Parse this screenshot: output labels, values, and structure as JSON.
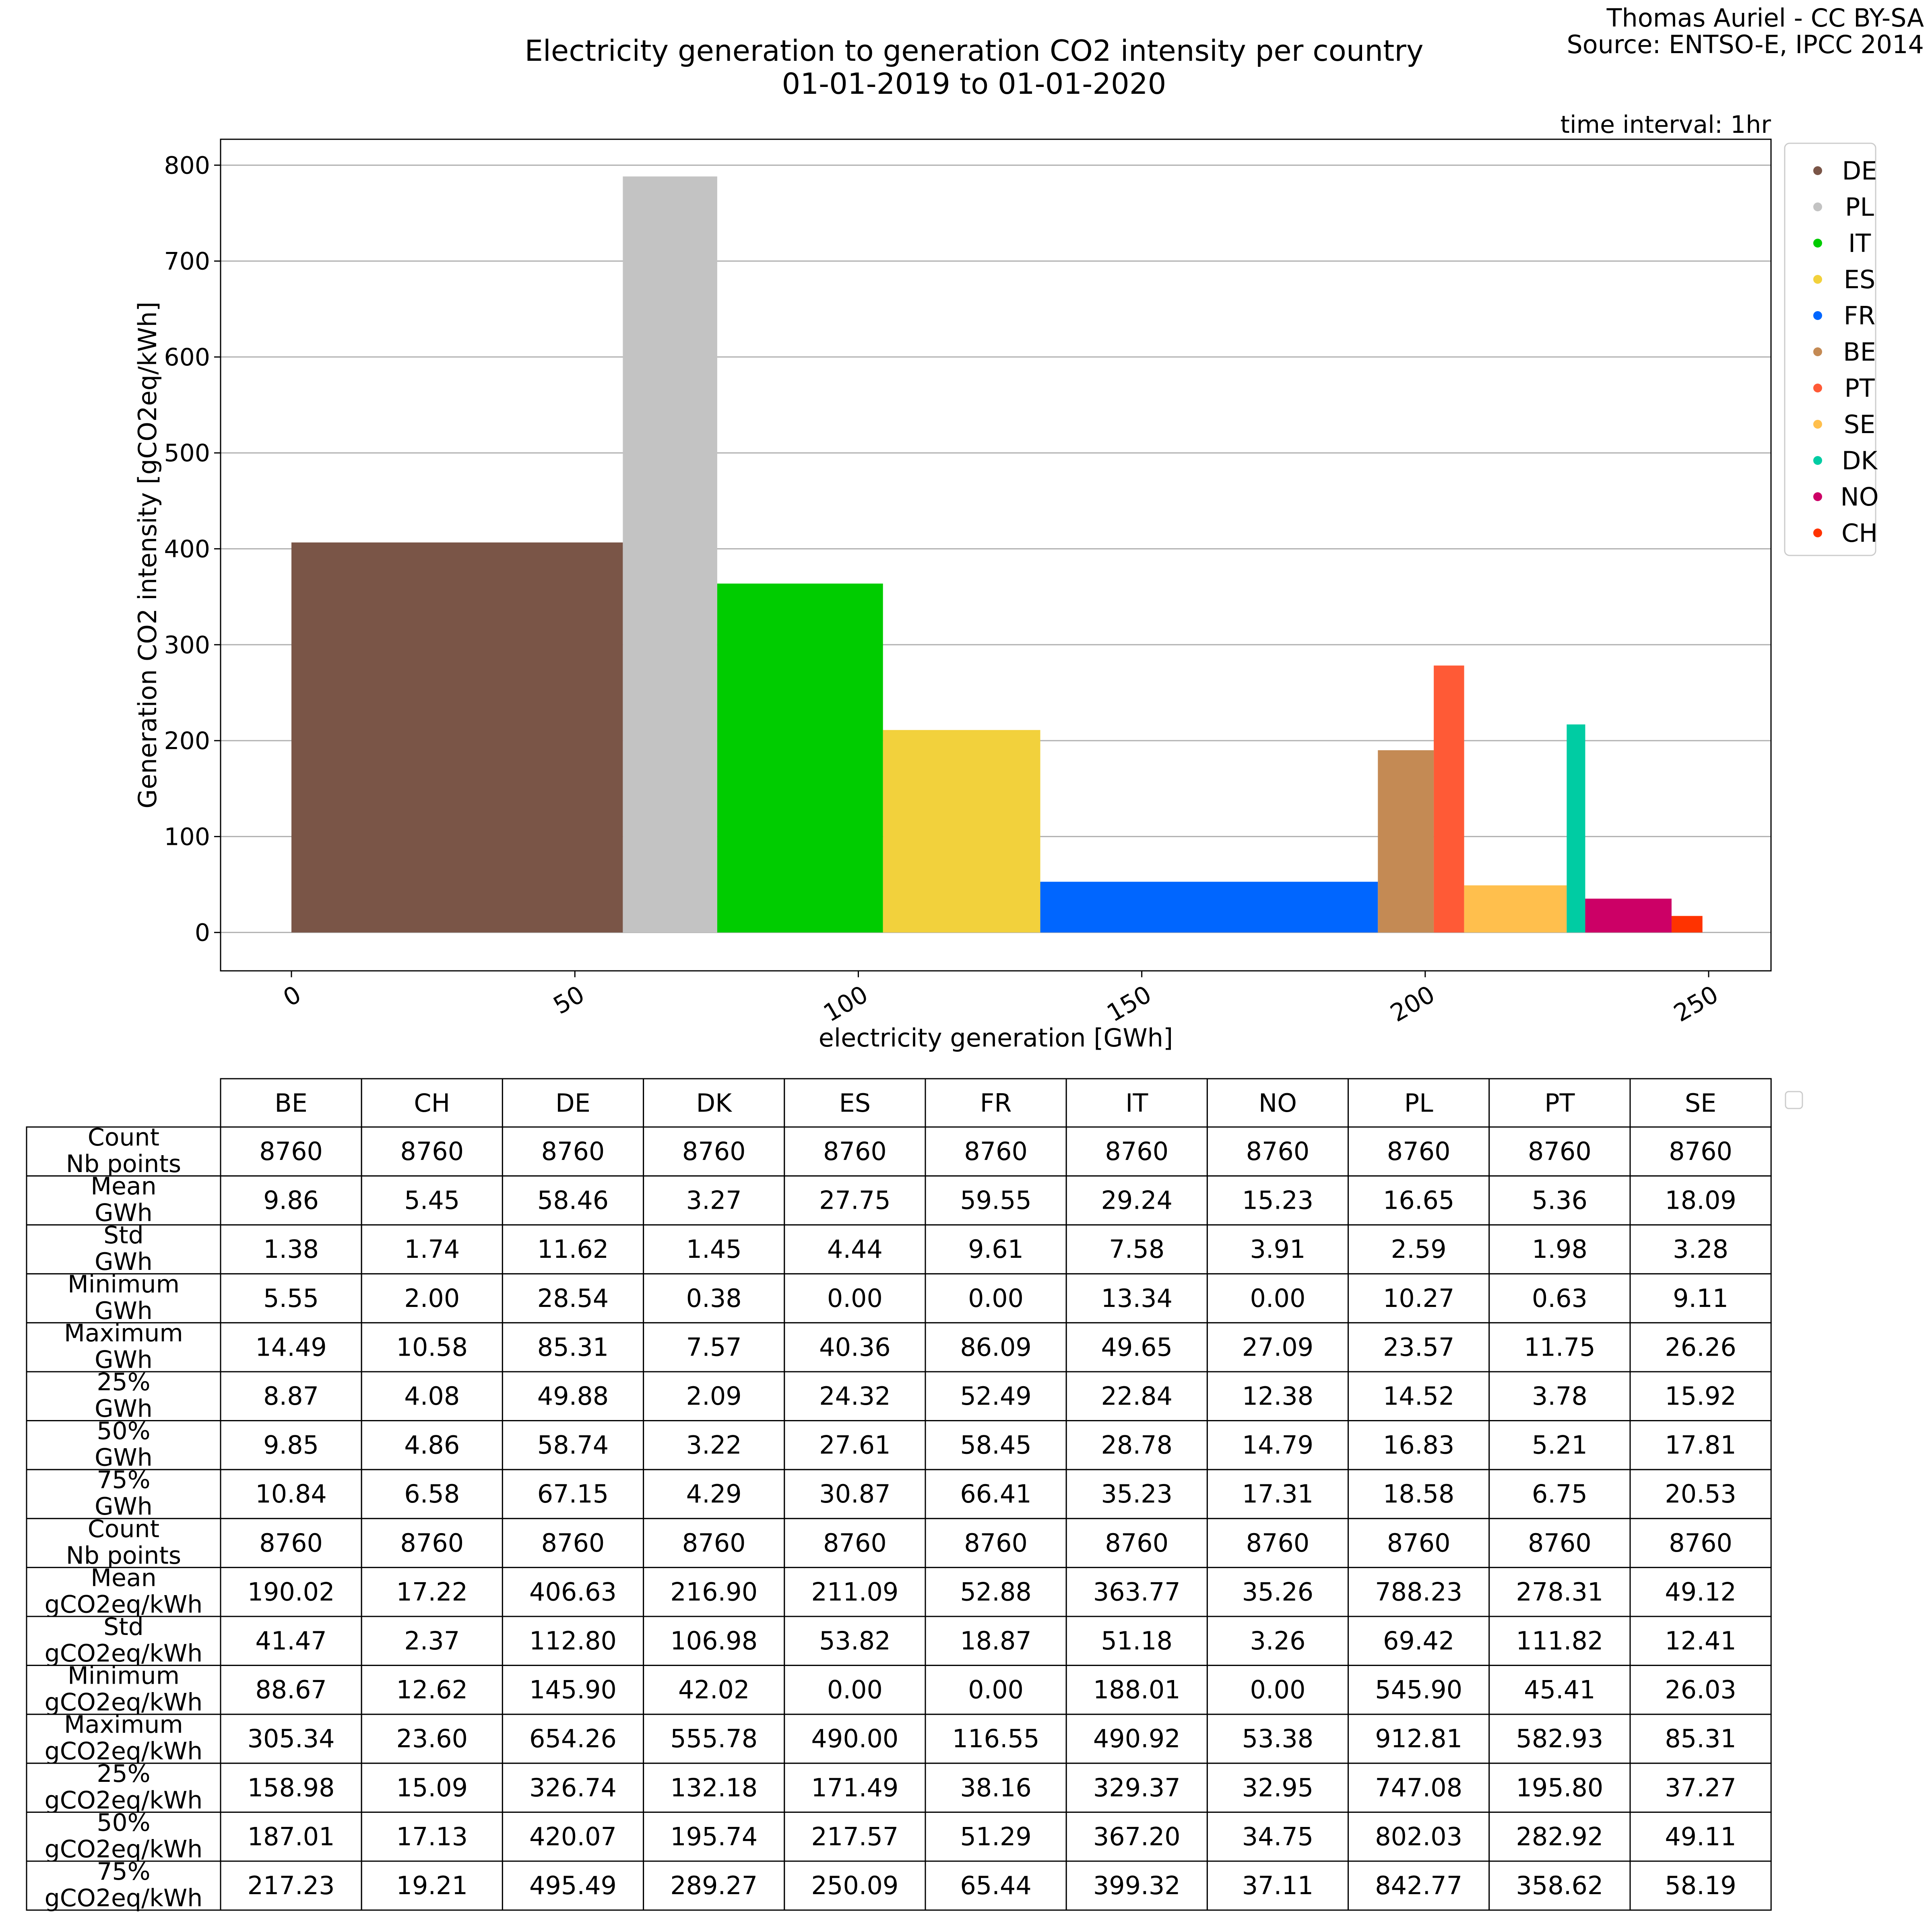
{
  "credits": {
    "author": "Thomas Auriel - CC BY-SA",
    "source": "Source: ENTSO-E, IPCC 2014"
  },
  "chart_data": {
    "type": "bar",
    "title": "Electricity generation to generation CO2 intensity per country",
    "subtitle": "01-01-2019 to 01-01-2020",
    "annotation": "time interval: 1hr",
    "xlabel": "electricity generation [GWh]",
    "ylabel": "Generation CO2 intensity [gCO2eq/kWh]",
    "xlim": [
      -12.5,
      261
    ],
    "ylim": [
      -40,
      827
    ],
    "xticks": [
      0,
      50,
      100,
      150,
      200,
      250
    ],
    "yticks": [
      0,
      100,
      200,
      300,
      400,
      500,
      600,
      700,
      800
    ],
    "grid": "horizontal",
    "legend_position": "right",
    "bar_layout": "variable-width bars placed side by side; bar width = mean electricity generation [GWh], bar height = mean generation CO2 intensity [gCO2eq/kWh]",
    "series": [
      {
        "name": "DE",
        "width": 58.46,
        "value": 406.63,
        "color": "#7a5547"
      },
      {
        "name": "PL",
        "width": 16.65,
        "value": 788.23,
        "color": "#c3c3c3"
      },
      {
        "name": "IT",
        "width": 29.24,
        "value": 363.77,
        "color": "#00cc00"
      },
      {
        "name": "ES",
        "width": 27.75,
        "value": 211.09,
        "color": "#f2d13c"
      },
      {
        "name": "FR",
        "width": 59.55,
        "value": 52.88,
        "color": "#0066ff"
      },
      {
        "name": "BE",
        "width": 9.86,
        "value": 190.02,
        "color": "#c48a54"
      },
      {
        "name": "PT",
        "width": 5.36,
        "value": 278.31,
        "color": "#ff5a36"
      },
      {
        "name": "SE",
        "width": 18.09,
        "value": 49.12,
        "color": "#ffbf4d"
      },
      {
        "name": "DK",
        "width": 3.27,
        "value": 216.9,
        "color": "#00cca3"
      },
      {
        "name": "NO",
        "width": 15.23,
        "value": 35.26,
        "color": "#cc0066"
      },
      {
        "name": "CH",
        "width": 5.45,
        "value": 17.22,
        "color": "#ff3300"
      }
    ],
    "table": {
      "columns": [
        "BE",
        "CH",
        "DE",
        "DK",
        "ES",
        "FR",
        "IT",
        "NO",
        "PL",
        "PT",
        "SE"
      ],
      "rows": [
        {
          "label": [
            "Count",
            "Nb points"
          ],
          "values": [
            "8760",
            "8760",
            "8760",
            "8760",
            "8760",
            "8760",
            "8760",
            "8760",
            "8760",
            "8760",
            "8760"
          ]
        },
        {
          "label": [
            "Mean",
            "GWh"
          ],
          "values": [
            "9.86",
            "5.45",
            "58.46",
            "3.27",
            "27.75",
            "59.55",
            "29.24",
            "15.23",
            "16.65",
            "5.36",
            "18.09"
          ]
        },
        {
          "label": [
            "Std",
            "GWh"
          ],
          "values": [
            "1.38",
            "1.74",
            "11.62",
            "1.45",
            "4.44",
            "9.61",
            "7.58",
            "3.91",
            "2.59",
            "1.98",
            "3.28"
          ]
        },
        {
          "label": [
            "Minimum",
            "GWh"
          ],
          "values": [
            "5.55",
            "2.00",
            "28.54",
            "0.38",
            "0.00",
            "0.00",
            "13.34",
            "0.00",
            "10.27",
            "0.63",
            "9.11"
          ]
        },
        {
          "label": [
            "Maximum",
            "GWh"
          ],
          "values": [
            "14.49",
            "10.58",
            "85.31",
            "7.57",
            "40.36",
            "86.09",
            "49.65",
            "27.09",
            "23.57",
            "11.75",
            "26.26"
          ]
        },
        {
          "label": [
            "25%",
            "GWh"
          ],
          "values": [
            "8.87",
            "4.08",
            "49.88",
            "2.09",
            "24.32",
            "52.49",
            "22.84",
            "12.38",
            "14.52",
            "3.78",
            "15.92"
          ]
        },
        {
          "label": [
            "50%",
            "GWh"
          ],
          "values": [
            "9.85",
            "4.86",
            "58.74",
            "3.22",
            "27.61",
            "58.45",
            "28.78",
            "14.79",
            "16.83",
            "5.21",
            "17.81"
          ]
        },
        {
          "label": [
            "75%",
            "GWh"
          ],
          "values": [
            "10.84",
            "6.58",
            "67.15",
            "4.29",
            "30.87",
            "66.41",
            "35.23",
            "17.31",
            "18.58",
            "6.75",
            "20.53"
          ]
        },
        {
          "label": [
            "Count",
            "Nb points"
          ],
          "values": [
            "8760",
            "8760",
            "8760",
            "8760",
            "8760",
            "8760",
            "8760",
            "8760",
            "8760",
            "8760",
            "8760"
          ]
        },
        {
          "label": [
            "Mean",
            "gCO2eq/kWh"
          ],
          "values": [
            "190.02",
            "17.22",
            "406.63",
            "216.90",
            "211.09",
            "52.88",
            "363.77",
            "35.26",
            "788.23",
            "278.31",
            "49.12"
          ]
        },
        {
          "label": [
            "Std",
            "gCO2eq/kWh"
          ],
          "values": [
            "41.47",
            "2.37",
            "112.80",
            "106.98",
            "53.82",
            "18.87",
            "51.18",
            "3.26",
            "69.42",
            "111.82",
            "12.41"
          ]
        },
        {
          "label": [
            "Minimum",
            "gCO2eq/kWh"
          ],
          "values": [
            "88.67",
            "12.62",
            "145.90",
            "42.02",
            "0.00",
            "0.00",
            "188.01",
            "0.00",
            "545.90",
            "45.41",
            "26.03"
          ]
        },
        {
          "label": [
            "Maximum",
            "gCO2eq/kWh"
          ],
          "values": [
            "305.34",
            "23.60",
            "654.26",
            "555.78",
            "490.00",
            "116.55",
            "490.92",
            "53.38",
            "912.81",
            "582.93",
            "85.31"
          ]
        },
        {
          "label": [
            "25%",
            "gCO2eq/kWh"
          ],
          "values": [
            "158.98",
            "15.09",
            "326.74",
            "132.18",
            "171.49",
            "38.16",
            "329.37",
            "32.95",
            "747.08",
            "195.80",
            "37.27"
          ]
        },
        {
          "label": [
            "50%",
            "gCO2eq/kWh"
          ],
          "values": [
            "187.01",
            "17.13",
            "420.07",
            "195.74",
            "217.57",
            "51.29",
            "367.20",
            "34.75",
            "802.03",
            "282.92",
            "49.11"
          ]
        },
        {
          "label": [
            "75%",
            "gCO2eq/kWh"
          ],
          "values": [
            "217.23",
            "19.21",
            "495.49",
            "289.27",
            "250.09",
            "65.44",
            "399.32",
            "37.11",
            "842.77",
            "358.62",
            "58.19"
          ]
        }
      ]
    }
  }
}
